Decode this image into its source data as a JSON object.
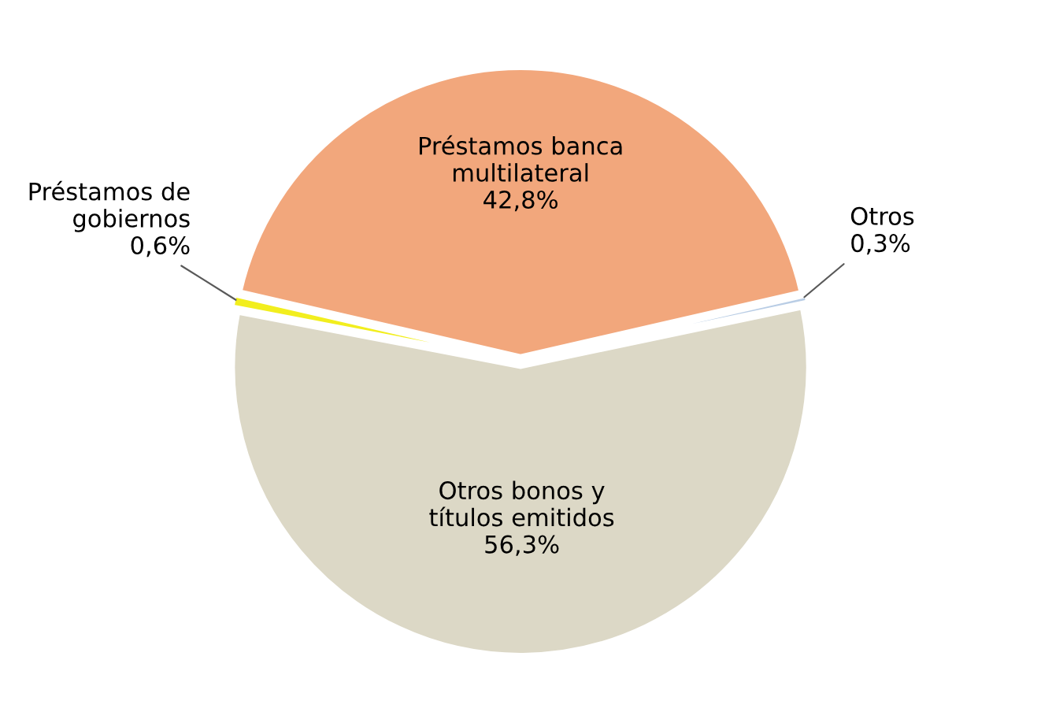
{
  "chart_data": {
    "type": "pie",
    "categories": [
      "Préstamos banca\nmultilateral",
      "Otros",
      "Otros bonos y\ntítulos emitidos",
      "Préstamos de\ngobiernos"
    ],
    "values": [
      42.8,
      0.3,
      56.3,
      0.6
    ],
    "value_labels": [
      "42,8%",
      "0,3%",
      "56,3%",
      "0,6%"
    ],
    "colors": [
      "#f2a77c",
      "#b9cde5",
      "#dcd8c6",
      "#f2ee1e"
    ],
    "legend": false
  }
}
